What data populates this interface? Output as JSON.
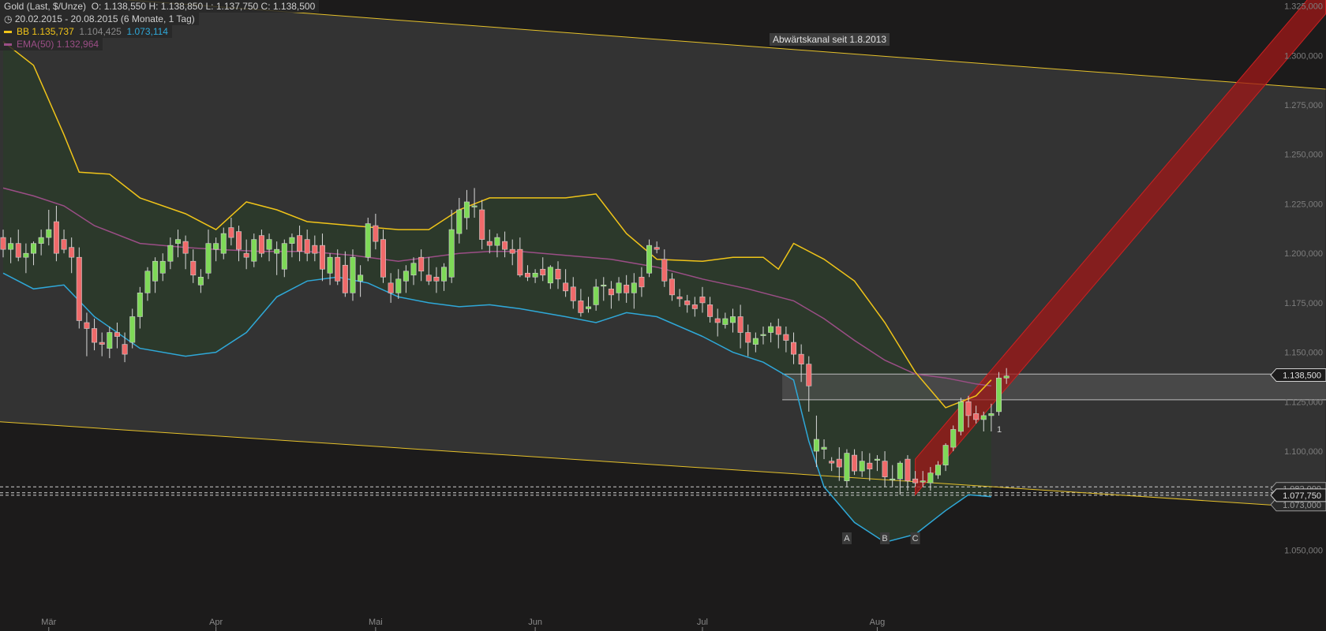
{
  "legend": {
    "symbol": "Gold (Last, $/Unze)",
    "ohlc": "O: 1.138,550   H: 1.138,850   L: 1.137,750   C: 1.138,500",
    "range": "20.02.2015 - 20.08.2015 (6 Monate, 1 Tag)",
    "bb_label": "BB",
    "bb_upper": "1.135,737",
    "bb_mid": "1.104,425",
    "bb_lower": "1.073,114",
    "ema_label": "EMA(50)",
    "ema_value": "1.132,964"
  },
  "annotation": "Abwärtskanal seit 1.8.2013",
  "colors": {
    "background": "#1c1b1b",
    "channel": "#333333",
    "bb_fill": "#2b3a2a",
    "bb_upper": "#f0c419",
    "bb_lower": "#2fa8d8",
    "ema": "#9b4e86",
    "up": "#7ed957",
    "down": "#f06a6a",
    "trend": "#a01818"
  },
  "chart_data": {
    "type": "candlestick",
    "title": "Gold (Last, $/Unze)",
    "period": "20.02.2015 - 20.08.2015",
    "ylim": [
      1040,
      1325
    ],
    "yticks": [
      1050,
      1075,
      1100,
      1125,
      1150,
      1175,
      1200,
      1225,
      1250,
      1275,
      1300,
      1325
    ],
    "ytick_labels": [
      "1.050,000",
      "1.075,000",
      "1.100,000",
      "1.125,000",
      "1.150,000",
      "1.175,000",
      "1.200,000",
      "1.225,000",
      "1.250,000",
      "1.275,000",
      "1.300,000",
      "1.325,000"
    ],
    "months": [
      {
        "label": "Mär",
        "i": 6
      },
      {
        "label": "Apr",
        "i": 28
      },
      {
        "label": "Mai",
        "i": 49
      },
      {
        "label": "Jun",
        "i": 70
      },
      {
        "label": "Jul",
        "i": 92
      },
      {
        "label": "Aug",
        "i": 115
      }
    ],
    "ohlc": [
      [
        1208,
        1212,
        1198,
        1202
      ],
      [
        1202,
        1208,
        1195,
        1205
      ],
      [
        1205,
        1212,
        1196,
        1198
      ],
      [
        1198,
        1205,
        1190,
        1200
      ],
      [
        1200,
        1206,
        1194,
        1205
      ],
      [
        1205,
        1212,
        1199,
        1208
      ],
      [
        1208,
        1222,
        1204,
        1212
      ],
      [
        1216,
        1224,
        1196,
        1200
      ],
      [
        1207,
        1212,
        1200,
        1202
      ],
      [
        1203,
        1208,
        1190,
        1198
      ],
      [
        1198,
        1203,
        1162,
        1166
      ],
      [
        1165,
        1170,
        1148,
        1162
      ],
      [
        1162,
        1167,
        1151,
        1155
      ],
      [
        1155,
        1160,
        1148,
        1154
      ],
      [
        1152,
        1163,
        1147,
        1160
      ],
      [
        1160,
        1165,
        1152,
        1158
      ],
      [
        1154,
        1160,
        1145,
        1149
      ],
      [
        1155,
        1172,
        1152,
        1168
      ],
      [
        1168,
        1183,
        1162,
        1180
      ],
      [
        1180,
        1193,
        1176,
        1191
      ],
      [
        1186,
        1198,
        1180,
        1196
      ],
      [
        1190,
        1200,
        1186,
        1196
      ],
      [
        1196,
        1208,
        1192,
        1204
      ],
      [
        1205,
        1212,
        1198,
        1207
      ],
      [
        1206,
        1209,
        1192,
        1200
      ],
      [
        1196,
        1202,
        1185,
        1189
      ],
      [
        1184,
        1192,
        1180,
        1188
      ],
      [
        1190,
        1212,
        1187,
        1205
      ],
      [
        1202,
        1208,
        1196,
        1205
      ],
      [
        1200,
        1213,
        1197,
        1210
      ],
      [
        1213,
        1218,
        1204,
        1208
      ],
      [
        1211,
        1214,
        1196,
        1202
      ],
      [
        1200,
        1207,
        1192,
        1198
      ],
      [
        1196,
        1210,
        1193,
        1207
      ],
      [
        1209,
        1212,
        1198,
        1200
      ],
      [
        1202,
        1210,
        1196,
        1207
      ],
      [
        1200,
        1206,
        1189,
        1202
      ],
      [
        1192,
        1207,
        1188,
        1205
      ],
      [
        1205,
        1210,
        1198,
        1208
      ],
      [
        1209,
        1214,
        1196,
        1201
      ],
      [
        1207,
        1212,
        1196,
        1200
      ],
      [
        1204,
        1209,
        1196,
        1200
      ],
      [
        1204,
        1210,
        1186,
        1192
      ],
      [
        1190,
        1200,
        1184,
        1198
      ],
      [
        1198,
        1202,
        1184,
        1186
      ],
      [
        1194,
        1201,
        1178,
        1180
      ],
      [
        1180,
        1202,
        1176,
        1198
      ],
      [
        1186,
        1194,
        1178,
        1189
      ],
      [
        1198,
        1218,
        1196,
        1215
      ],
      [
        1214,
        1220,
        1202,
        1206
      ],
      [
        1207,
        1212,
        1185,
        1188
      ],
      [
        1185,
        1190,
        1175,
        1180
      ],
      [
        1180,
        1192,
        1177,
        1187
      ],
      [
        1186,
        1194,
        1180,
        1191
      ],
      [
        1189,
        1198,
        1184,
        1195
      ],
      [
        1198,
        1202,
        1186,
        1191
      ],
      [
        1189,
        1198,
        1184,
        1186
      ],
      [
        1188,
        1193,
        1180,
        1186
      ],
      [
        1186,
        1195,
        1181,
        1193
      ],
      [
        1188,
        1222,
        1185,
        1212
      ],
      [
        1210,
        1228,
        1205,
        1222
      ],
      [
        1218,
        1232,
        1212,
        1226
      ],
      [
        1224,
        1233,
        1218,
        1224
      ],
      [
        1222,
        1227,
        1202,
        1207
      ],
      [
        1206,
        1212,
        1200,
        1204
      ],
      [
        1204,
        1210,
        1198,
        1208
      ],
      [
        1206,
        1211,
        1198,
        1202
      ],
      [
        1202,
        1207,
        1194,
        1200
      ],
      [
        1202,
        1208,
        1188,
        1189
      ],
      [
        1190,
        1194,
        1186,
        1188
      ],
      [
        1188,
        1192,
        1185,
        1190
      ],
      [
        1192,
        1198,
        1186,
        1189
      ],
      [
        1185,
        1194,
        1182,
        1193
      ],
      [
        1192,
        1196,
        1182,
        1187
      ],
      [
        1185,
        1192,
        1178,
        1181
      ],
      [
        1183,
        1188,
        1172,
        1176
      ],
      [
        1176,
        1182,
        1168,
        1170
      ],
      [
        1172,
        1178,
        1170,
        1173
      ],
      [
        1174,
        1187,
        1171,
        1183
      ],
      [
        1184,
        1188,
        1176,
        1184
      ],
      [
        1182,
        1186,
        1172,
        1179
      ],
      [
        1180,
        1188,
        1176,
        1185
      ],
      [
        1184,
        1189,
        1175,
        1180
      ],
      [
        1180,
        1190,
        1172,
        1185
      ],
      [
        1188,
        1193,
        1178,
        1183
      ],
      [
        1190,
        1207,
        1188,
        1204
      ],
      [
        1203,
        1206,
        1200,
        1202
      ],
      [
        1197,
        1202,
        1183,
        1186
      ],
      [
        1187,
        1190,
        1176,
        1179
      ],
      [
        1178,
        1182,
        1173,
        1177
      ],
      [
        1176,
        1179,
        1170,
        1174
      ],
      [
        1174,
        1178,
        1168,
        1172
      ],
      [
        1178,
        1183,
        1170,
        1175
      ],
      [
        1174,
        1178,
        1165,
        1168
      ],
      [
        1167,
        1172,
        1158,
        1165
      ],
      [
        1164,
        1170,
        1162,
        1167
      ],
      [
        1165,
        1172,
        1160,
        1168
      ],
      [
        1168,
        1174,
        1152,
        1160
      ],
      [
        1160,
        1164,
        1148,
        1155
      ],
      [
        1154,
        1160,
        1150,
        1157
      ],
      [
        1159,
        1163,
        1154,
        1159
      ],
      [
        1160,
        1165,
        1155,
        1163
      ],
      [
        1163,
        1167,
        1152,
        1159
      ],
      [
        1159,
        1163,
        1150,
        1156
      ],
      [
        1155,
        1160,
        1144,
        1149
      ],
      [
        1149,
        1154,
        1135,
        1144
      ],
      [
        1144,
        1148,
        1120,
        1133
      ],
      [
        1100,
        1118,
        1092,
        1106
      ],
      [
        1101,
        1106,
        1096,
        1102
      ],
      [
        1095,
        1097,
        1090,
        1094
      ],
      [
        1096,
        1102,
        1085,
        1092
      ],
      [
        1085,
        1101,
        1082,
        1099
      ],
      [
        1098,
        1101,
        1088,
        1090
      ],
      [
        1090,
        1100,
        1087,
        1095
      ],
      [
        1094,
        1099,
        1085,
        1091
      ],
      [
        1096,
        1098,
        1090,
        1096
      ],
      [
        1095,
        1100,
        1082,
        1087
      ],
      [
        1086,
        1093,
        1082,
        1086
      ],
      [
        1086,
        1095,
        1078,
        1094
      ],
      [
        1096,
        1098,
        1080,
        1085
      ],
      [
        1086,
        1090,
        1082,
        1084
      ],
      [
        1085,
        1090,
        1082,
        1085
      ],
      [
        1084,
        1092,
        1080,
        1089
      ],
      [
        1088,
        1095,
        1086,
        1093
      ],
      [
        1093,
        1104,
        1090,
        1103
      ],
      [
        1102,
        1113,
        1100,
        1111
      ],
      [
        1110,
        1127,
        1108,
        1125
      ],
      [
        1125,
        1128,
        1112,
        1118
      ],
      [
        1119,
        1123,
        1114,
        1116
      ],
      [
        1116,
        1120,
        1110,
        1118
      ],
      [
        1118,
        1124,
        1110,
        1119
      ],
      [
        1120,
        1140,
        1118,
        1137
      ],
      [
        1137,
        1142,
        1134,
        1138
      ]
    ],
    "bb_upper": [
      [
        0,
        1307
      ],
      [
        4,
        1295
      ],
      [
        8,
        1260
      ],
      [
        10,
        1241
      ],
      [
        14,
        1240
      ],
      [
        18,
        1228
      ],
      [
        24,
        1220
      ],
      [
        28,
        1212
      ],
      [
        32,
        1226
      ],
      [
        36,
        1222
      ],
      [
        40,
        1216
      ],
      [
        46,
        1214
      ],
      [
        52,
        1212
      ],
      [
        56,
        1212
      ],
      [
        60,
        1222
      ],
      [
        64,
        1228
      ],
      [
        68,
        1228
      ],
      [
        74,
        1228
      ],
      [
        78,
        1230
      ],
      [
        82,
        1210
      ],
      [
        86,
        1197
      ],
      [
        92,
        1196
      ],
      [
        96,
        1198
      ],
      [
        100,
        1198
      ],
      [
        102,
        1192
      ],
      [
        104,
        1205
      ],
      [
        108,
        1197
      ],
      [
        112,
        1186
      ],
      [
        116,
        1165
      ],
      [
        120,
        1140
      ],
      [
        124,
        1122
      ],
      [
        128,
        1128
      ],
      [
        130,
        1136
      ]
    ],
    "bb_lower": [
      [
        0,
        1190
      ],
      [
        4,
        1182
      ],
      [
        8,
        1184
      ],
      [
        12,
        1168
      ],
      [
        18,
        1152
      ],
      [
        24,
        1148
      ],
      [
        28,
        1150
      ],
      [
        32,
        1160
      ],
      [
        36,
        1178
      ],
      [
        40,
        1186
      ],
      [
        44,
        1188
      ],
      [
        48,
        1185
      ],
      [
        52,
        1178
      ],
      [
        56,
        1175
      ],
      [
        60,
        1173
      ],
      [
        64,
        1174
      ],
      [
        68,
        1172
      ],
      [
        74,
        1168
      ],
      [
        78,
        1165
      ],
      [
        82,
        1170
      ],
      [
        86,
        1168
      ],
      [
        92,
        1158
      ],
      [
        96,
        1150
      ],
      [
        100,
        1145
      ],
      [
        104,
        1136
      ],
      [
        106,
        1105
      ],
      [
        108,
        1082
      ],
      [
        112,
        1064
      ],
      [
        116,
        1054
      ],
      [
        120,
        1058
      ],
      [
        124,
        1070
      ],
      [
        127,
        1078
      ],
      [
        130,
        1077
      ]
    ],
    "ema50": [
      [
        0,
        1233
      ],
      [
        4,
        1229
      ],
      [
        8,
        1224
      ],
      [
        12,
        1214
      ],
      [
        18,
        1205
      ],
      [
        24,
        1203
      ],
      [
        28,
        1202
      ],
      [
        34,
        1201
      ],
      [
        40,
        1201
      ],
      [
        46,
        1199
      ],
      [
        52,
        1196
      ],
      [
        56,
        1198
      ],
      [
        60,
        1200
      ],
      [
        64,
        1201
      ],
      [
        68,
        1201
      ],
      [
        74,
        1199
      ],
      [
        80,
        1197
      ],
      [
        86,
        1193
      ],
      [
        92,
        1187
      ],
      [
        98,
        1182
      ],
      [
        104,
        1176
      ],
      [
        108,
        1167
      ],
      [
        112,
        1156
      ],
      [
        116,
        1146
      ],
      [
        120,
        1139
      ],
      [
        124,
        1137
      ],
      [
        128,
        1134
      ],
      [
        130,
        1133
      ]
    ],
    "channel_upper": [
      [
        -1,
        1333
      ],
      [
        174,
        1283
      ]
    ],
    "channel_lower": [
      [
        -1,
        1115
      ],
      [
        174,
        1071
      ]
    ],
    "trend_channel": {
      "start": [
        120,
        1087
      ],
      "end": [
        174,
        1330
      ],
      "width": 9
    },
    "consolidation_band": [
      1126,
      1139
    ],
    "support_lines": [
      1082.0,
      1079.0,
      1077.75
    ],
    "price_labels": [
      "1.138,500",
      "1.082,000",
      "1.077,750",
      "1.073,000"
    ],
    "markers": [
      {
        "label": "A",
        "i": 111
      },
      {
        "label": "B",
        "i": 116
      },
      {
        "label": "C",
        "i": 120
      }
    ],
    "band_marker": "1"
  }
}
